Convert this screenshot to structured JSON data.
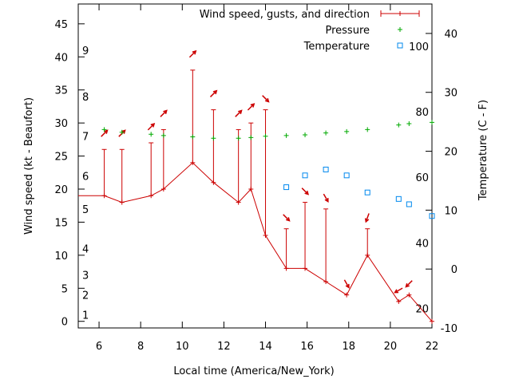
{
  "chart_data": {
    "type": "line",
    "xlabel": "Local time (America/New_York)",
    "ylabel_left": "Wind speed (kt - Beaufort)",
    "ylabel_right": "Temperature (C - F)",
    "x_range": [
      5,
      22
    ],
    "x_ticks": [
      6,
      8,
      10,
      12,
      14,
      16,
      18,
      20,
      22
    ],
    "y_left_range": [
      -1,
      48
    ],
    "y_left_ticks": [
      0,
      5,
      10,
      15,
      20,
      25,
      30,
      35,
      40,
      45
    ],
    "y_right_range": [
      -10,
      45
    ],
    "y_right_ticks": [
      -10,
      0,
      10,
      20,
      30,
      40
    ],
    "beaufort_labels": [
      {
        "label": "1",
        "y": 1
      },
      {
        "label": "2",
        "y": 4
      },
      {
        "label": "3",
        "y": 7
      },
      {
        "label": "4",
        "y": 11
      },
      {
        "label": "5",
        "y": 17
      },
      {
        "label": "6",
        "y": 22
      },
      {
        "label": "7",
        "y": 28
      },
      {
        "label": "8",
        "y": 34
      },
      {
        "label": "9",
        "y": 41
      }
    ],
    "fahrenheit_labels": [
      {
        "label": "20",
        "y": -6.7
      },
      {
        "label": "40",
        "y": 4.4
      },
      {
        "label": "60",
        "y": 15.6
      },
      {
        "label": "80",
        "y": 26.7
      },
      {
        "label": "100",
        "y": 37.8
      }
    ],
    "legend": {
      "placement": "top-right",
      "entries": [
        "Wind speed, gusts, and direction",
        "Pressure",
        "Temperature"
      ]
    },
    "series": [
      {
        "name": "Wind speed, gusts, and direction",
        "color": "#cc0000",
        "points": [
          {
            "x": 6.25,
            "speed": 19,
            "gust": 26,
            "dir": 225
          },
          {
            "x": 7.1,
            "speed": 18,
            "gust": 26,
            "dir": 225
          },
          {
            "x": 8.5,
            "speed": 19,
            "gust": 27,
            "dir": 225
          },
          {
            "x": 9.1,
            "speed": 20,
            "gust": 29,
            "dir": 225
          },
          {
            "x": 10.5,
            "speed": 24,
            "gust": 38,
            "dir": 225
          },
          {
            "x": 11.5,
            "speed": 21,
            "gust": 32,
            "dir": 225
          },
          {
            "x": 12.7,
            "speed": 18,
            "gust": 29,
            "dir": 225
          },
          {
            "x": 13.3,
            "speed": 20,
            "gust": 30,
            "dir": 225
          },
          {
            "x": 14,
            "speed": 13,
            "gust": 32,
            "dir": 315
          },
          {
            "x": 15,
            "speed": 8,
            "gust": 14,
            "dir": 315
          },
          {
            "x": 15.9,
            "speed": 8,
            "gust": 18,
            "dir": 315
          },
          {
            "x": 16.9,
            "speed": 6,
            "gust": 17,
            "dir": 330
          },
          {
            "x": 17.9,
            "speed": 4,
            "gust": 4,
            "dir": 330
          },
          {
            "x": 18.9,
            "speed": 10,
            "gust": 14,
            "dir": 20
          },
          {
            "x": 20.4,
            "speed": 3,
            "gust": 3,
            "dir": 60
          },
          {
            "x": 20.9,
            "speed": 4,
            "gust": 4,
            "dir": 45
          },
          {
            "x": 22,
            "speed": 0,
            "gust": 0
          }
        ]
      },
      {
        "name": "Pressure",
        "color": "#00aa00",
        "axis": "left",
        "points": [
          [
            6.25,
            29
          ],
          [
            7.1,
            28.6
          ],
          [
            8.5,
            28.3
          ],
          [
            9.1,
            28.1
          ],
          [
            10.5,
            27.9
          ],
          [
            11.5,
            27.7
          ],
          [
            12.7,
            27.7
          ],
          [
            13.3,
            27.8
          ],
          [
            14,
            28
          ],
          [
            15,
            28.1
          ],
          [
            15.9,
            28.2
          ],
          [
            16.9,
            28.5
          ],
          [
            17.9,
            28.7
          ],
          [
            18.9,
            29
          ],
          [
            20.4,
            29.7
          ],
          [
            20.9,
            29.9
          ],
          [
            22,
            30.1
          ]
        ]
      },
      {
        "name": "Temperature",
        "color": "#0088ee",
        "axis": "right",
        "points": [
          [
            15,
            13.9
          ],
          [
            15.9,
            15.9
          ],
          [
            16.9,
            16.9
          ],
          [
            17.9,
            15.9
          ],
          [
            18.9,
            13
          ],
          [
            20.4,
            11.9
          ],
          [
            20.9,
            11
          ],
          [
            22,
            9
          ]
        ]
      }
    ]
  }
}
